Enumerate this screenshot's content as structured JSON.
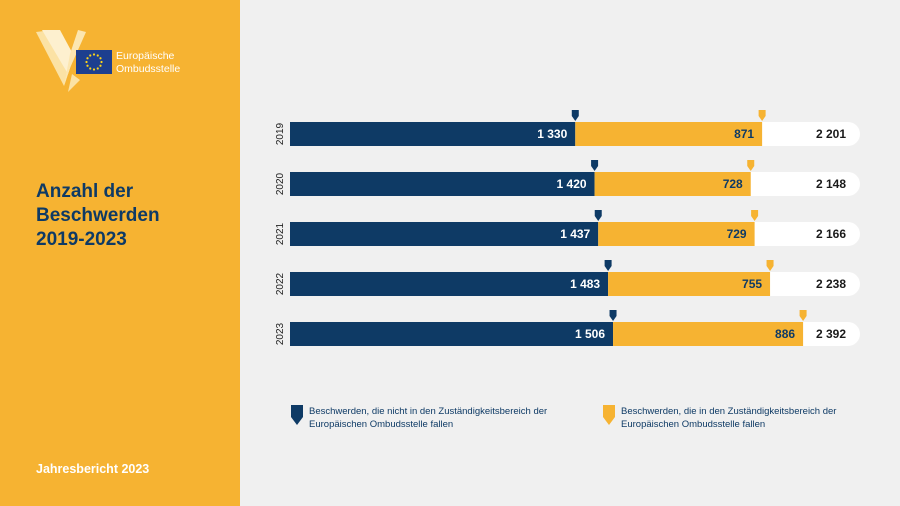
{
  "header": {
    "org_name_line1": "Europäische",
    "org_name_line2": "Ombudsstelle",
    "title_line1": "Anzahl der",
    "title_line2": "Beschwerden",
    "title_line3": "2019-2023",
    "footer": "Jahresbericht 2023"
  },
  "colors": {
    "navy": "#0e3a65",
    "orange": "#f6b332",
    "white": "#ffffff",
    "background": "#f0f0f0"
  },
  "legend": {
    "navy_label": "Beschwerden, die nicht in den Zuständigkeitsbereich der Europäischen Ombudsstelle fallen",
    "orange_label": "Beschwerden, die in den Zuständigkeitsbereich der Europäischen Ombudsstelle fallen"
  },
  "chart_data": {
    "type": "bar",
    "orientation": "horizontal",
    "stacked": true,
    "categories": [
      "2019",
      "2020",
      "2021",
      "2022",
      "2023"
    ],
    "series": [
      {
        "name": "Beschwerden, die nicht in den Zuständigkeitsbereich der Europäischen Ombudsstelle fallen",
        "values": [
          1330,
          1420,
          1437,
          1483,
          1506
        ]
      },
      {
        "name": "Beschwerden, die in den Zuständigkeitsbereich der Europäischen Ombudsstelle fallen",
        "values": [
          871,
          728,
          729,
          755,
          886
        ]
      }
    ],
    "value_labels": [
      [
        "1 330",
        "1 420",
        "1 437",
        "1 483",
        "1 506"
      ],
      [
        "871",
        "728",
        "729",
        "755",
        "886"
      ]
    ],
    "totals": [
      2201,
      2148,
      2166,
      2238,
      2392
    ],
    "total_labels": [
      "2 201",
      "2 148",
      "2 166",
      "2 238",
      "2 392"
    ],
    "legend_position": "bottom",
    "grid": false
  }
}
